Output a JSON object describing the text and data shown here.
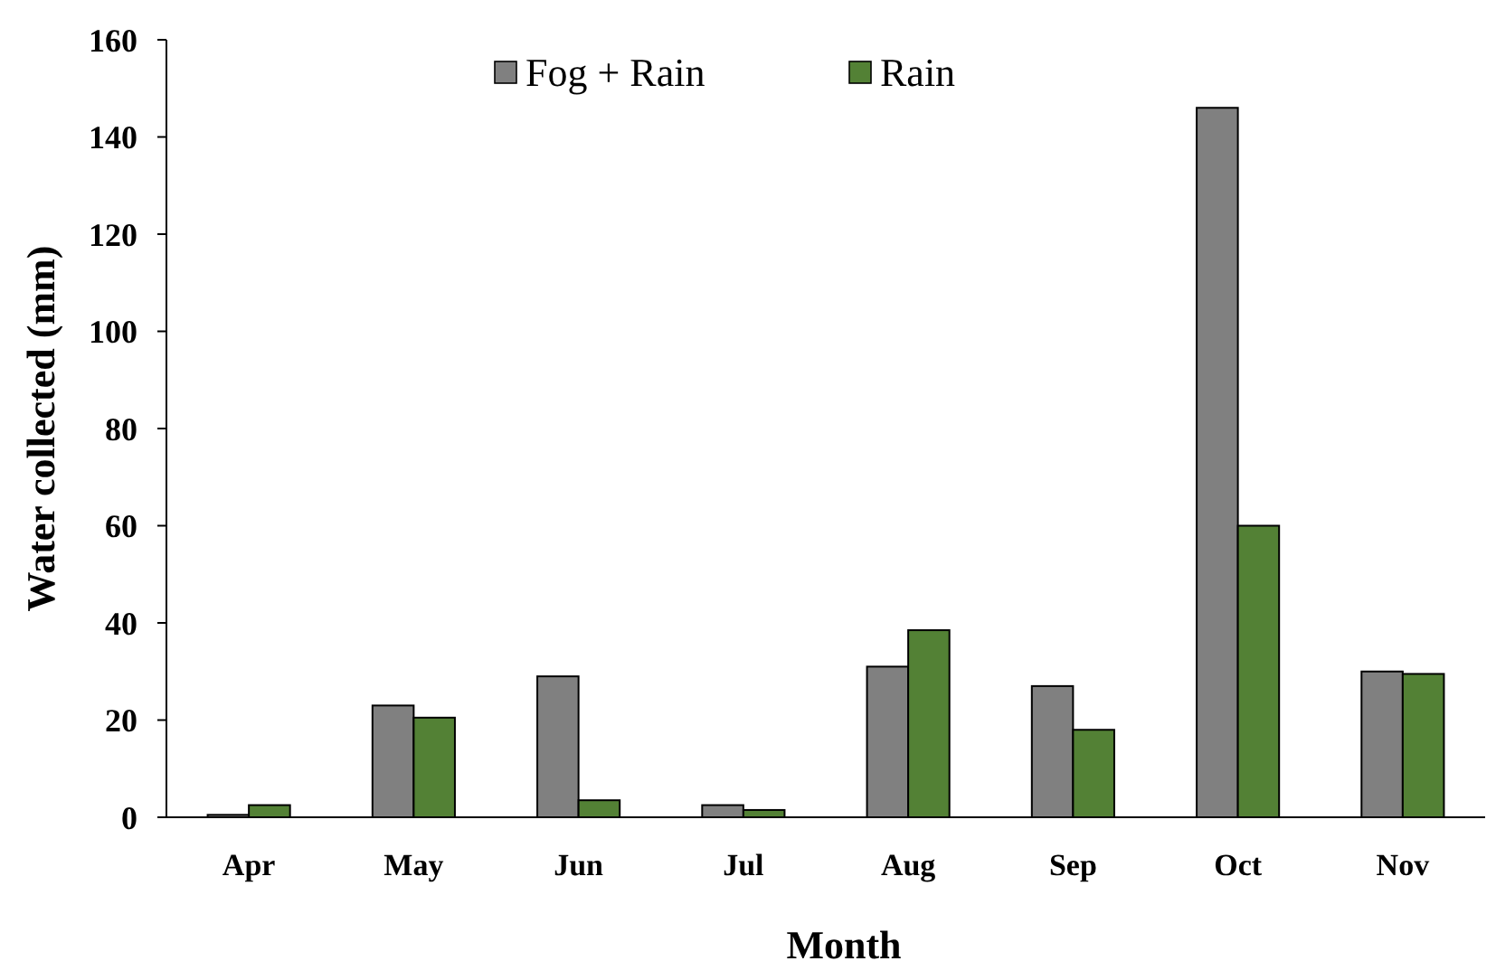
{
  "chart_data": {
    "type": "bar",
    "xlabel": "Month",
    "ylabel": "Water collected (mm)",
    "categories": [
      "Apr",
      "May",
      "Jun",
      "Jul",
      "Aug",
      "Sep",
      "Oct",
      "Nov"
    ],
    "series": [
      {
        "name": "Fog + Rain",
        "color": "#808080",
        "values": [
          0.5,
          23,
          29,
          2.5,
          31,
          27,
          146,
          30
        ]
      },
      {
        "name": "Rain",
        "color": "#538135",
        "values": [
          2.5,
          20.5,
          3.5,
          1.5,
          38.5,
          18,
          60,
          29.5
        ]
      }
    ],
    "ylim": [
      0,
      160
    ],
    "yticks": [
      0,
      20,
      40,
      60,
      80,
      100,
      120,
      140,
      160
    ],
    "grid": false,
    "legend": "top"
  }
}
